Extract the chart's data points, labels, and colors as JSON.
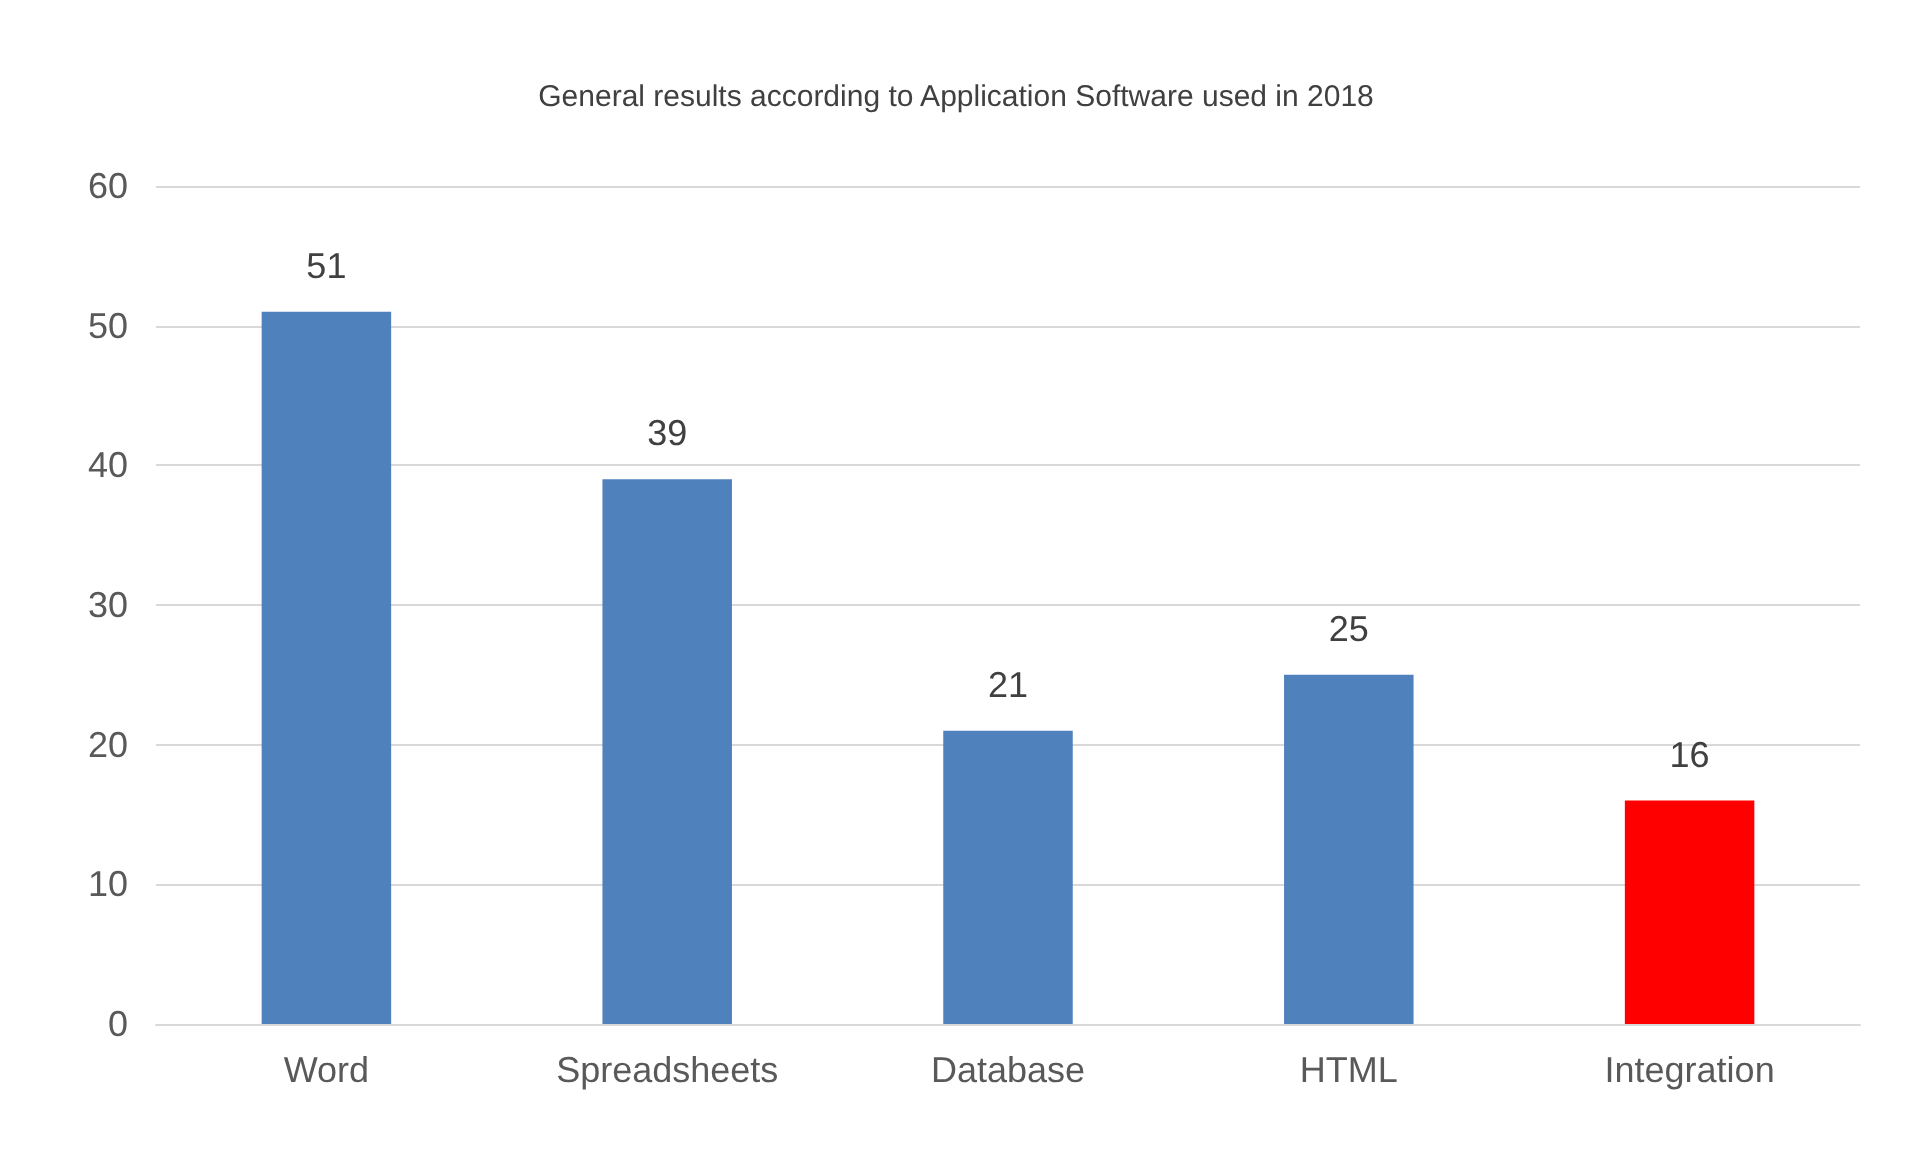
{
  "chart_data": {
    "type": "bar",
    "title": "General results according to Application Software used in 2018",
    "categories": [
      "Word",
      "Spreadsheets",
      "Database",
      "HTML",
      "Integration"
    ],
    "values": [
      51,
      39,
      21,
      25,
      16
    ],
    "colors": [
      "#4f81bd",
      "#4f81bd",
      "#4f81bd",
      "#4f81bd",
      "#ff0000"
    ],
    "ylim": [
      0,
      60
    ],
    "yticks": [
      0,
      10,
      20,
      30,
      40,
      50,
      60
    ],
    "grid": "y",
    "data_labels": true
  }
}
